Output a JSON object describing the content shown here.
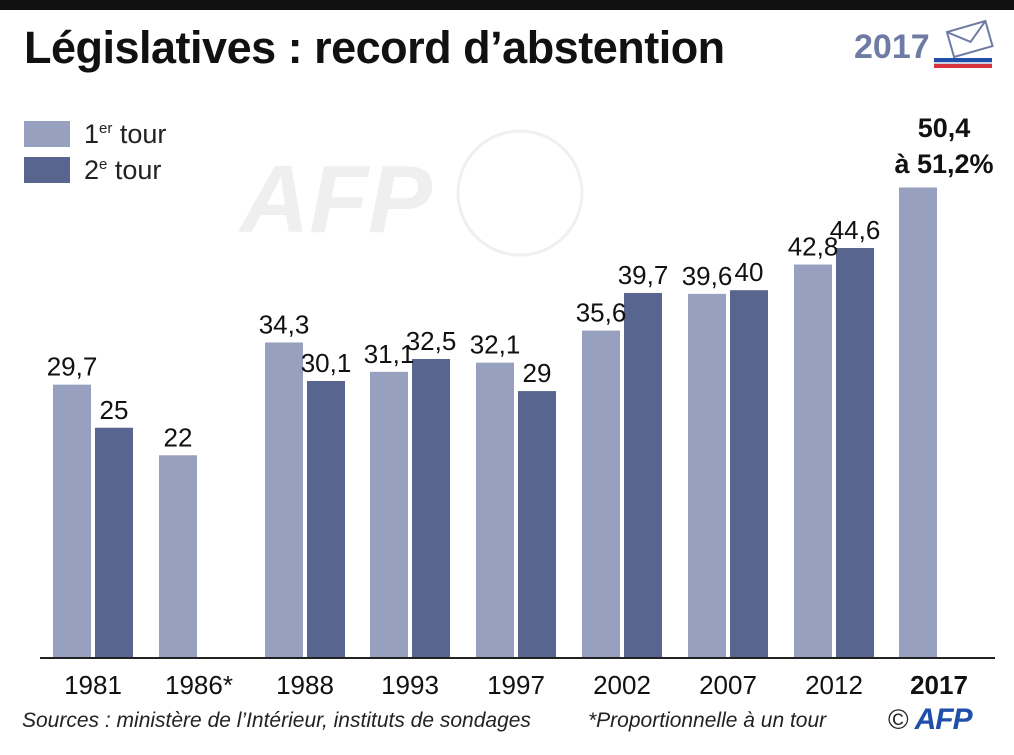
{
  "header": {
    "title": "Législatives : record d’abstention",
    "badge_year": "2017"
  },
  "legend": [
    {
      "base": "1",
      "sup": "er",
      "rest": " tour",
      "color": "#97a0bf"
    },
    {
      "base": "2",
      "sup": "e",
      "rest": " tour",
      "color": "#58668f"
    }
  ],
  "footer": {
    "sources": "Sources : ministère de l’Intérieur, instituts de sondages",
    "note": "*Proportionnelle à un tour",
    "copyright": "©",
    "credit": "AFP"
  },
  "colors": {
    "first_round": "#97a0bf",
    "second_round": "#58668f",
    "axis": "#222222",
    "logo_blue": "#1f4fa8",
    "logo_red": "#d8343d"
  },
  "watermark": {
    "text": "AFP"
  },
  "chart_data": {
    "type": "bar",
    "categories": [
      "1981",
      "1986*",
      "1988",
      "1993",
      "1997",
      "2002",
      "2007",
      "2012",
      "2017"
    ],
    "series": [
      {
        "name": "1er tour",
        "values": [
          29.7,
          22,
          34.3,
          31.1,
          32.1,
          35.6,
          39.6,
          42.8,
          51.2
        ]
      },
      {
        "name": "2e tour",
        "values": [
          25,
          null,
          30.1,
          32.5,
          29,
          39.7,
          40,
          44.6,
          null
        ]
      }
    ],
    "value_labels": [
      [
        "29,7",
        "22",
        "34,3",
        "31,1",
        "32,1",
        "35,6",
        "39,6",
        "42,8",
        "50,4 à 51,2%"
      ],
      [
        "25",
        "",
        "30,1",
        "32,5",
        "29",
        "39,7",
        "40",
        "44,6",
        ""
      ]
    ],
    "highlight_category": "2017",
    "title": "Législatives : record d’abstention",
    "xlabel": "",
    "ylabel": "",
    "ylim": [
      0,
      52
    ],
    "grid": false,
    "legend_position": "top-left"
  }
}
